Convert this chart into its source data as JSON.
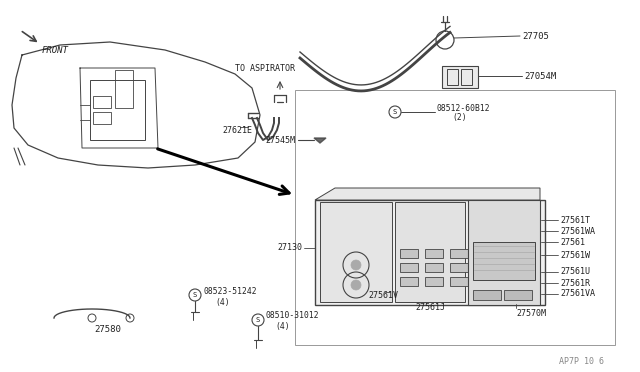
{
  "bg_color": "#ffffff",
  "line_color": "#444444",
  "text_color": "#222222",
  "fig_width": 6.4,
  "fig_height": 3.72,
  "dpi": 100,
  "labels": {
    "front": "FRONT",
    "to_aspirator": "TO ASPIRATOR",
    "27705": "27705",
    "27054M": "27054M",
    "27621E": "27621E",
    "27545M": "27545M",
    "08512_60812": "08512-60B12",
    "qty2": "(2)",
    "27130": "27130",
    "27561T": "27561T",
    "27561WA": "27561WA",
    "27561": "27561",
    "27561W": "27561W",
    "27561V": "27561V",
    "27561U": "27561U",
    "27561R": "27561R",
    "27561J": "27561J",
    "27561VA": "27561VA",
    "27570M": "27570M",
    "27580": "27580",
    "08523_51242": "08523-51242",
    "qty4a": "(4)",
    "08510_31012": "08510-31012",
    "qty4b": "(4)",
    "ap7p": "AP7P 10 6"
  }
}
